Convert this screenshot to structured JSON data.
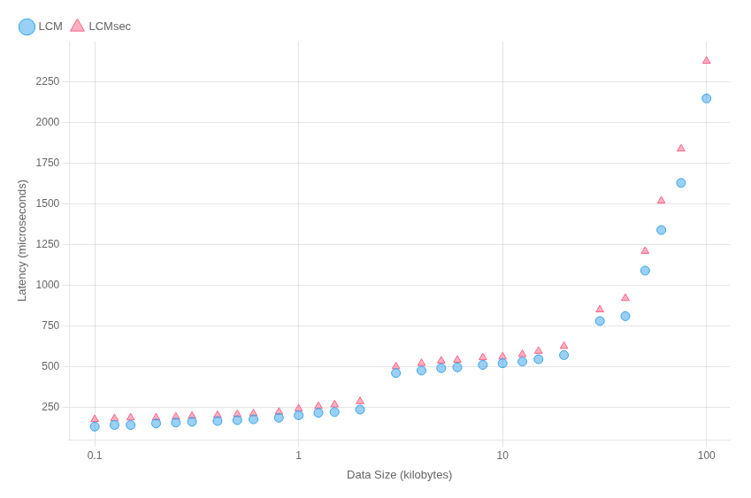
{
  "chart_data": {
    "type": "scatter",
    "x_label": "Data Size (kilobytes)",
    "y_label": "Latency (microseconds)",
    "x": [
      0.1,
      0.125,
      0.15,
      0.2,
      0.25,
      0.3,
      0.4,
      0.5,
      0.6,
      0.8,
      1.0,
      1.25,
      1.5,
      2.0,
      3.0,
      4.0,
      5.0,
      6.0,
      8.0,
      10.0,
      12.5,
      15.0,
      20.0,
      30.0,
      40.0,
      50.0,
      60.0,
      75.0,
      100.0
    ],
    "series": [
      {
        "name": "LCM",
        "marker": "circle",
        "values": [
          130,
          140,
          140,
          150,
          155,
          160,
          165,
          170,
          175,
          185,
          200,
          215,
          220,
          235,
          460,
          475,
          490,
          495,
          510,
          520,
          530,
          545,
          570,
          780,
          810,
          1090,
          1340,
          1630,
          2150
        ]
      },
      {
        "name": "LCMsec",
        "marker": "triangle",
        "values": [
          175,
          180,
          185,
          185,
          190,
          195,
          200,
          205,
          210,
          220,
          240,
          255,
          265,
          285,
          500,
          520,
          535,
          540,
          555,
          560,
          575,
          595,
          625,
          850,
          920,
          1210,
          1520,
          1840,
          2380
        ]
      }
    ],
    "log": "x",
    "xlim": [
      0.075,
      130
    ],
    "xticks": [
      0.1,
      1.0,
      10.0,
      100.0
    ],
    "ylim": [
      50,
      2500
    ],
    "yticks": [
      250,
      500,
      750,
      1000,
      1250,
      1500,
      1750,
      2000,
      2250
    ],
    "grid": true,
    "legend": "upper left"
  }
}
